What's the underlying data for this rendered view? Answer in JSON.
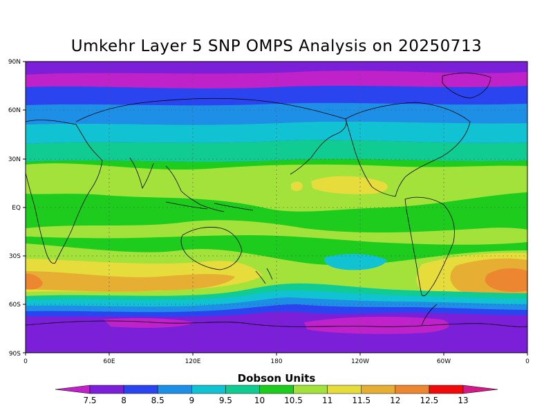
{
  "title": "Umkehr Layer 5 SNP OMPS Analysis on 20250713",
  "lat_labels": [
    "90N",
    "60N",
    "30N",
    "EQ",
    "30S",
    "60S",
    "90S"
  ],
  "lon_labels": [
    "0",
    "60E",
    "120E",
    "180",
    "120W",
    "60W",
    "0"
  ],
  "colorbar": {
    "title": "Dobson Units",
    "ticks": [
      "7.5",
      "8",
      "8.5",
      "9",
      "9.5",
      "10",
      "10.5",
      "11",
      "11.5",
      "12",
      "12.5",
      "13"
    ],
    "colors": [
      "#c022c9",
      "#7b1fd8",
      "#2a45f0",
      "#1e8fe6",
      "#10c2d2",
      "#10cc92",
      "#1dcc1d",
      "#a2e23a",
      "#e6dc3c",
      "#e6ae32",
      "#ec8630",
      "#f00a0a",
      "#d41a86"
    ]
  },
  "map_data": {
    "field": "Umkehr Layer 5 ozone",
    "units": "Dobson Units",
    "bands": [
      {
        "lat_range": "90N-78N",
        "value_range": "7.5-8",
        "color": "#7b1fd8"
      },
      {
        "lat_range": "78N-70N",
        "value_range": "8-8.5",
        "color": "#c022c9"
      },
      {
        "lat_range": "70N-63N",
        "value_range": "8.5-9",
        "color": "#2a45f0"
      },
      {
        "lat_range": "63N-55N",
        "value_range": "9-9.5",
        "color": "#1e8fe6"
      },
      {
        "lat_range": "55N-47N",
        "value_range": "9.5-10",
        "color": "#10c2d2"
      },
      {
        "lat_range": "47N-38N",
        "value_range": "10-10.5",
        "color": "#10cc92"
      },
      {
        "lat_range": "38N-10S",
        "value_range": "10.5-11.5",
        "color": "#a2e23a"
      },
      {
        "lat_range": "30S-50S",
        "value_range": "11.5-12.5",
        "color": "#e6ae32"
      },
      {
        "lat_range": "55S-60S",
        "value_range": "9.5-10.5",
        "color": "#10c2d2"
      },
      {
        "lat_range": "62S-90S",
        "value_range": "7.5-8.5",
        "color": "#7b1fd8"
      }
    ],
    "maxima": [
      {
        "location": "South Atlantic ~45S 20W",
        "value_range": "12-12.5"
      },
      {
        "location": "South Atlantic ~45S 0E",
        "value_range": "12-12.5"
      }
    ]
  }
}
